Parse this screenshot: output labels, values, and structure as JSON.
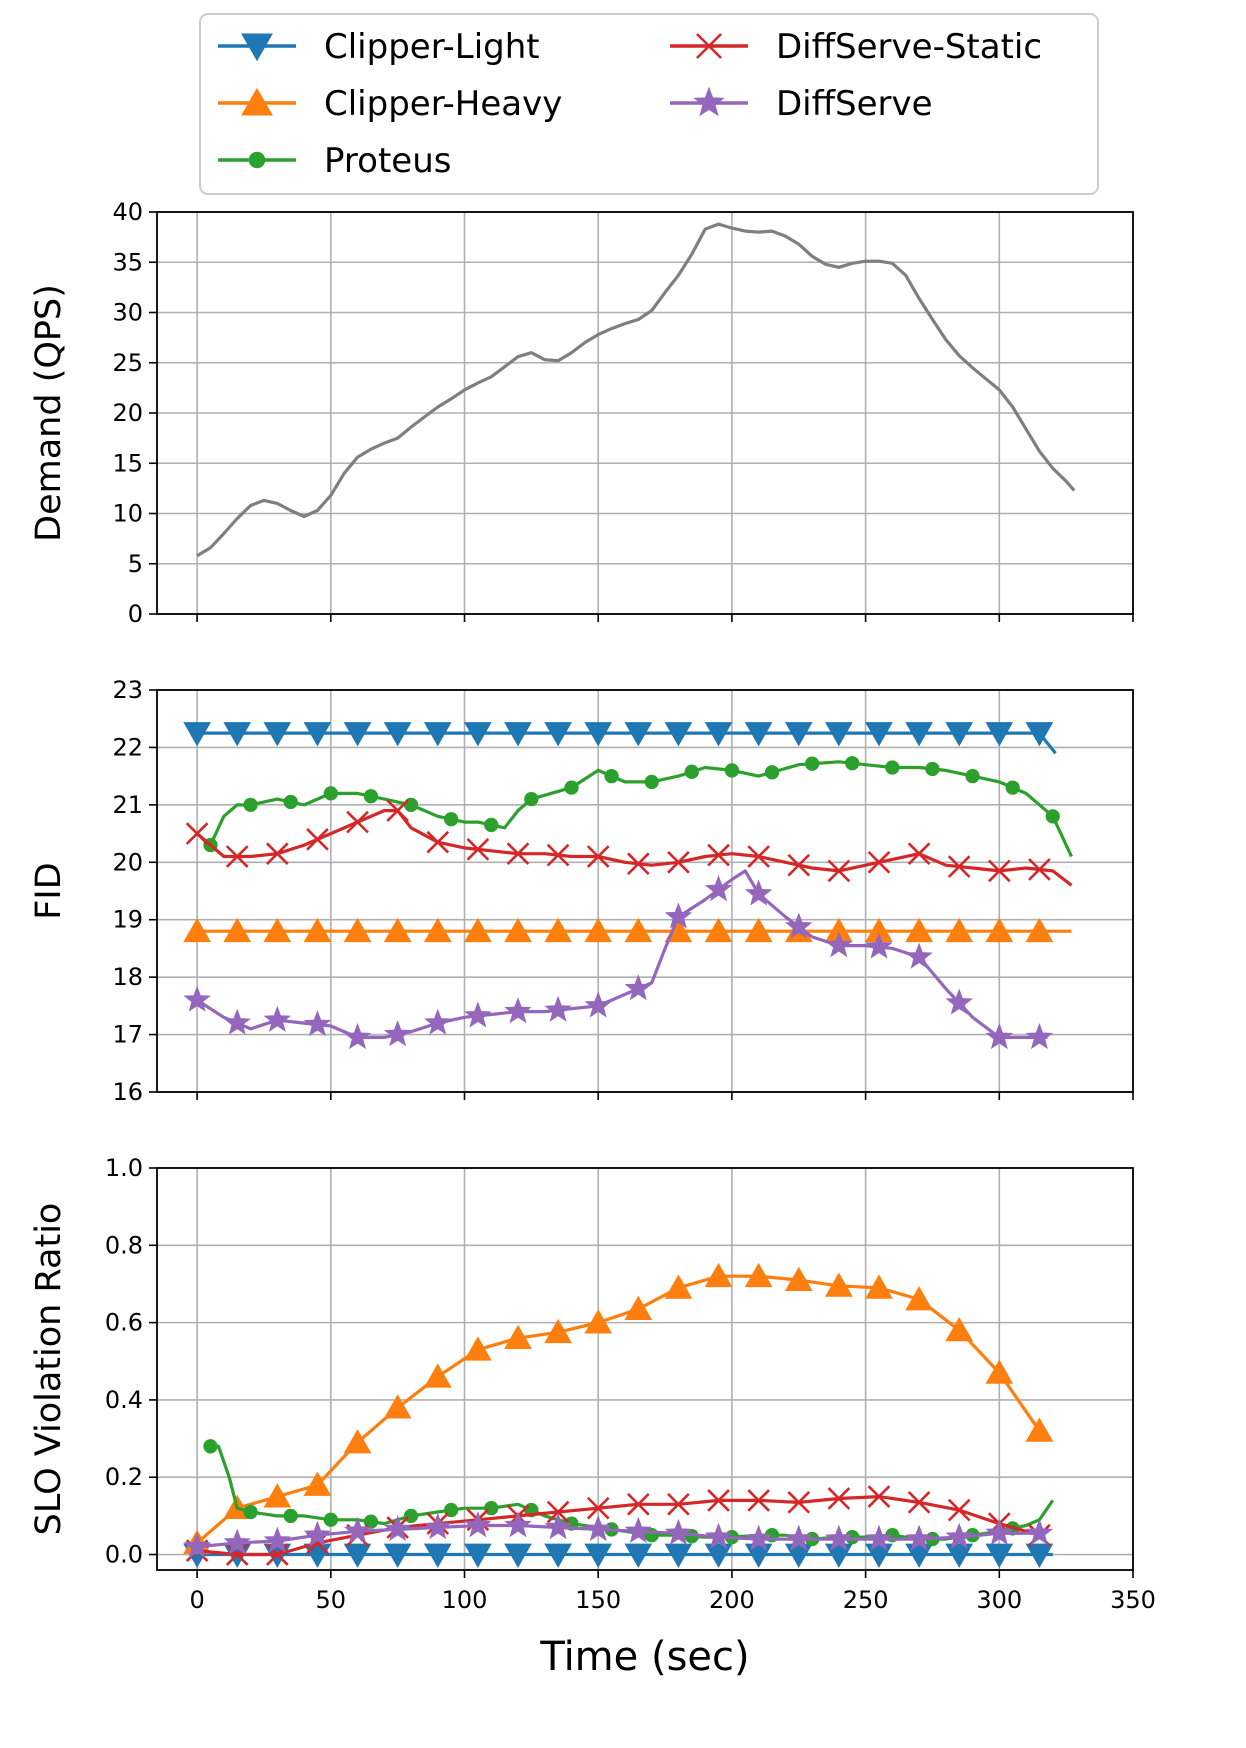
{
  "chart_data": [
    {
      "type": "line",
      "panel": "demand",
      "title": "",
      "xlabel": "",
      "ylabel": "Demand (QPS)",
      "xlim": [
        -15,
        350
      ],
      "ylim": [
        0,
        40
      ],
      "yticks": [
        0,
        5,
        10,
        15,
        20,
        25,
        30,
        35,
        40
      ],
      "xticks": [
        0,
        50,
        100,
        150,
        200,
        250,
        300,
        350
      ],
      "xtick_labels_visible": false,
      "grid": true,
      "series": [
        {
          "color": "#7f7f7f",
          "marker": "none",
          "x": [
            0,
            5,
            10,
            15,
            20,
            25,
            30,
            35,
            40,
            45,
            50,
            55,
            60,
            65,
            70,
            75,
            80,
            85,
            90,
            95,
            100,
            105,
            110,
            115,
            120,
            125,
            130,
            135,
            140,
            145,
            150,
            155,
            160,
            165,
            170,
            175,
            180,
            185,
            190,
            195,
            200,
            205,
            210,
            215,
            220,
            225,
            230,
            235,
            240,
            245,
            250,
            255,
            260,
            265,
            270,
            275,
            280,
            285,
            290,
            295,
            300,
            305,
            310,
            315,
            320,
            325,
            328
          ],
          "values": [
            5.8,
            6.6,
            8.0,
            9.5,
            10.8,
            11.3,
            11.0,
            10.3,
            9.7,
            10.3,
            11.8,
            14.0,
            15.6,
            16.4,
            17.0,
            17.5,
            18.6,
            19.6,
            20.6,
            21.4,
            22.3,
            23.0,
            23.6,
            24.6,
            25.6,
            26.0,
            25.3,
            25.2,
            26.0,
            27.0,
            27.8,
            28.4,
            28.9,
            29.3,
            30.2,
            32.0,
            33.7,
            35.8,
            38.3,
            38.8,
            38.4,
            38.1,
            38.0,
            38.1,
            37.6,
            36.8,
            35.6,
            34.8,
            34.5,
            34.9,
            35.1,
            35.1,
            34.9,
            33.7,
            31.4,
            29.3,
            27.3,
            25.7,
            24.5,
            23.4,
            22.3,
            20.6,
            18.4,
            16.2,
            14.5,
            13.2,
            12.3
          ]
        }
      ]
    },
    {
      "type": "line",
      "panel": "fid",
      "title": "",
      "xlabel": "",
      "ylabel": "FID",
      "xlim": [
        -15,
        350
      ],
      "ylim": [
        16,
        23
      ],
      "yticks": [
        16,
        17,
        18,
        19,
        20,
        21,
        22,
        23
      ],
      "xticks": [
        0,
        50,
        100,
        150,
        200,
        250,
        300,
        350
      ],
      "xtick_labels_visible": false,
      "grid": true,
      "series": [
        {
          "name": "Clipper-Light",
          "color": "#1f77b4",
          "marker": "triangle-down",
          "x": [
            0,
            15,
            30,
            45,
            60,
            75,
            90,
            105,
            120,
            135,
            150,
            165,
            180,
            195,
            210,
            225,
            240,
            255,
            270,
            285,
            300,
            315,
            321
          ],
          "values": [
            22.25,
            22.25,
            22.25,
            22.25,
            22.25,
            22.25,
            22.25,
            22.25,
            22.25,
            22.25,
            22.25,
            22.25,
            22.25,
            22.25,
            22.25,
            22.25,
            22.25,
            22.25,
            22.25,
            22.25,
            22.25,
            22.25,
            21.9
          ],
          "marker_x": [
            0,
            15,
            30,
            45,
            60,
            75,
            90,
            105,
            120,
            135,
            150,
            165,
            180,
            195,
            210,
            225,
            240,
            255,
            270,
            285,
            300,
            315
          ]
        },
        {
          "name": "Clipper-Heavy",
          "color": "#ff7f0e",
          "marker": "triangle-up",
          "x": [
            0,
            327
          ],
          "values": [
            18.8,
            18.8
          ],
          "marker_x": [
            0,
            15,
            30,
            45,
            60,
            75,
            90,
            105,
            120,
            135,
            150,
            165,
            180,
            195,
            210,
            225,
            240,
            255,
            270,
            285,
            300,
            315
          ]
        },
        {
          "name": "Proteus",
          "color": "#2ca02c",
          "marker": "circle",
          "x": [
            5,
            10,
            15,
            20,
            30,
            40,
            50,
            60,
            70,
            80,
            90,
            100,
            105,
            115,
            120,
            125,
            140,
            150,
            160,
            170,
            180,
            190,
            200,
            210,
            225,
            240,
            250,
            260,
            270,
            280,
            290,
            300,
            310,
            320,
            327
          ],
          "values": [
            20.3,
            20.8,
            21.0,
            21.0,
            21.1,
            21.0,
            21.2,
            21.2,
            21.1,
            21.0,
            20.8,
            20.7,
            20.7,
            20.6,
            20.9,
            21.1,
            21.3,
            21.6,
            21.4,
            21.4,
            21.5,
            21.65,
            21.6,
            21.5,
            21.7,
            21.75,
            21.7,
            21.65,
            21.65,
            21.6,
            21.5,
            21.4,
            21.2,
            20.8,
            20.1
          ],
          "marker_x": [
            5,
            20,
            35,
            50,
            65,
            80,
            95,
            110,
            125,
            140,
            155,
            170,
            185,
            200,
            215,
            230,
            245,
            260,
            275,
            290,
            305,
            320
          ]
        },
        {
          "name": "DiffServe-Static",
          "color": "#d62728",
          "marker": "x",
          "x": [
            0,
            10,
            20,
            30,
            40,
            50,
            60,
            70,
            75,
            80,
            90,
            100,
            110,
            120,
            130,
            140,
            150,
            160,
            170,
            180,
            190,
            200,
            210,
            220,
            230,
            240,
            250,
            260,
            270,
            280,
            290,
            300,
            310,
            320,
            327
          ],
          "values": [
            20.5,
            20.1,
            20.1,
            20.15,
            20.3,
            20.5,
            20.7,
            20.9,
            20.9,
            20.6,
            20.35,
            20.25,
            20.2,
            20.15,
            20.15,
            20.1,
            20.1,
            20.0,
            19.95,
            20.0,
            20.1,
            20.15,
            20.1,
            20.0,
            19.9,
            19.85,
            19.95,
            20.05,
            20.15,
            19.95,
            19.9,
            19.85,
            19.9,
            19.85,
            19.6
          ],
          "marker_x": [
            0,
            15,
            30,
            45,
            60,
            75,
            90,
            105,
            120,
            135,
            150,
            165,
            180,
            195,
            210,
            225,
            240,
            255,
            270,
            285,
            300,
            315
          ]
        },
        {
          "name": "DiffServe",
          "color": "#9467bd",
          "marker": "star",
          "x": [
            0,
            10,
            15,
            20,
            30,
            40,
            50,
            60,
            70,
            80,
            90,
            100,
            110,
            120,
            130,
            140,
            150,
            160,
            165,
            170,
            175,
            180,
            190,
            200,
            205,
            210,
            220,
            230,
            240,
            250,
            260,
            270,
            280,
            290,
            300,
            310,
            318
          ],
          "values": [
            17.6,
            17.3,
            17.2,
            17.1,
            17.25,
            17.2,
            17.15,
            16.95,
            16.95,
            17.05,
            17.2,
            17.3,
            17.35,
            17.4,
            17.4,
            17.45,
            17.5,
            17.7,
            17.8,
            17.9,
            18.5,
            19.05,
            19.35,
            19.7,
            19.85,
            19.45,
            19.05,
            18.7,
            18.55,
            18.55,
            18.5,
            18.35,
            17.8,
            17.3,
            16.95,
            16.95,
            16.95
          ],
          "marker_x": [
            0,
            15,
            30,
            45,
            60,
            75,
            90,
            105,
            120,
            135,
            150,
            165,
            180,
            195,
            210,
            225,
            240,
            255,
            270,
            285,
            300,
            315
          ]
        }
      ]
    },
    {
      "type": "line",
      "panel": "slo",
      "title": "",
      "xlabel": "Time (sec)",
      "ylabel": "SLO Violation Ratio",
      "xlim": [
        -15,
        350
      ],
      "ylim": [
        -0.04,
        1.0
      ],
      "yticks": [
        0.0,
        0.2,
        0.4,
        0.6,
        0.8,
        1.0
      ],
      "ytick_labels": [
        "0.0",
        "0.2",
        "0.4",
        "0.6",
        "0.8",
        "1.0"
      ],
      "xticks": [
        0,
        50,
        100,
        150,
        200,
        250,
        300,
        350
      ],
      "xtick_labels": [
        "0",
        "50",
        "100",
        "150",
        "200",
        "250",
        "300",
        "350"
      ],
      "grid": true,
      "series": [
        {
          "name": "Clipper-Light",
          "color": "#1f77b4",
          "marker": "triangle-down",
          "x": [
            0,
            320
          ],
          "values": [
            0.0,
            0.0
          ],
          "marker_x": [
            0,
            15,
            30,
            45,
            60,
            75,
            90,
            105,
            120,
            135,
            150,
            165,
            180,
            195,
            210,
            225,
            240,
            255,
            270,
            285,
            300,
            315
          ]
        },
        {
          "name": "Clipper-Heavy",
          "color": "#ff7f0e",
          "marker": "triangle-up",
          "x": [
            0,
            15,
            30,
            45,
            60,
            75,
            90,
            105,
            120,
            135,
            150,
            165,
            180,
            195,
            210,
            225,
            240,
            255,
            270,
            285,
            300,
            315
          ],
          "values": [
            0.03,
            0.12,
            0.15,
            0.18,
            0.29,
            0.38,
            0.46,
            0.53,
            0.56,
            0.575,
            0.6,
            0.635,
            0.69,
            0.72,
            0.72,
            0.71,
            0.695,
            0.69,
            0.66,
            0.58,
            0.47,
            0.32
          ],
          "marker_x": [
            0,
            15,
            30,
            45,
            60,
            75,
            90,
            105,
            120,
            135,
            150,
            165,
            180,
            195,
            210,
            225,
            240,
            255,
            270,
            285,
            300,
            315
          ]
        },
        {
          "name": "Proteus",
          "color": "#2ca02c",
          "marker": "circle",
          "x": [
            5,
            8,
            12,
            15,
            20,
            30,
            40,
            50,
            60,
            70,
            80,
            90,
            100,
            110,
            120,
            130,
            140,
            150,
            160,
            170,
            180,
            190,
            200,
            210,
            220,
            230,
            240,
            250,
            260,
            270,
            280,
            290,
            300,
            310,
            315,
            320
          ],
          "values": [
            0.28,
            0.28,
            0.2,
            0.12,
            0.11,
            0.1,
            0.1,
            0.09,
            0.09,
            0.08,
            0.1,
            0.11,
            0.12,
            0.12,
            0.13,
            0.1,
            0.08,
            0.07,
            0.06,
            0.05,
            0.05,
            0.045,
            0.045,
            0.05,
            0.05,
            0.04,
            0.045,
            0.045,
            0.05,
            0.04,
            0.04,
            0.05,
            0.06,
            0.075,
            0.09,
            0.14
          ],
          "marker_x": [
            5,
            20,
            35,
            50,
            65,
            80,
            95,
            110,
            125,
            140,
            155,
            170,
            185,
            200,
            215,
            230,
            245,
            260,
            275,
            290,
            305
          ]
        },
        {
          "name": "DiffServe-Static",
          "color": "#d62728",
          "marker": "x",
          "x": [
            0,
            15,
            30,
            45,
            60,
            75,
            90,
            105,
            120,
            135,
            150,
            165,
            180,
            195,
            210,
            225,
            240,
            255,
            270,
            285,
            300,
            315
          ],
          "values": [
            0.01,
            0.0,
            0.0,
            0.03,
            0.05,
            0.07,
            0.08,
            0.09,
            0.1,
            0.11,
            0.12,
            0.13,
            0.13,
            0.14,
            0.14,
            0.135,
            0.145,
            0.15,
            0.135,
            0.115,
            0.08,
            0.05
          ],
          "marker_x": [
            0,
            15,
            30,
            45,
            60,
            75,
            90,
            105,
            120,
            135,
            150,
            165,
            180,
            195,
            210,
            225,
            240,
            255,
            270,
            285,
            300,
            315
          ]
        },
        {
          "name": "DiffServe",
          "color": "#9467bd",
          "marker": "star",
          "x": [
            0,
            15,
            30,
            45,
            60,
            75,
            90,
            105,
            120,
            135,
            150,
            165,
            180,
            195,
            210,
            225,
            240,
            255,
            270,
            285,
            300,
            315
          ],
          "values": [
            0.02,
            0.03,
            0.035,
            0.05,
            0.06,
            0.065,
            0.07,
            0.075,
            0.075,
            0.07,
            0.065,
            0.06,
            0.055,
            0.045,
            0.04,
            0.04,
            0.04,
            0.04,
            0.04,
            0.045,
            0.055,
            0.055
          ],
          "marker_x": [
            0,
            15,
            30,
            45,
            60,
            75,
            90,
            105,
            120,
            135,
            150,
            165,
            180,
            195,
            210,
            225,
            240,
            255,
            270,
            285,
            300,
            315
          ]
        }
      ]
    }
  ],
  "legend": {
    "placement": "top-center",
    "entries": [
      {
        "label": "Clipper-Light",
        "color": "#1f77b4",
        "marker": "triangle-down"
      },
      {
        "label": "Clipper-Heavy",
        "color": "#ff7f0e",
        "marker": "triangle-up"
      },
      {
        "label": "Proteus",
        "color": "#2ca02c",
        "marker": "circle"
      },
      {
        "label": "DiffServe-Static",
        "color": "#d62728",
        "marker": "x"
      },
      {
        "label": "DiffServe",
        "color": "#9467bd",
        "marker": "star"
      }
    ]
  }
}
